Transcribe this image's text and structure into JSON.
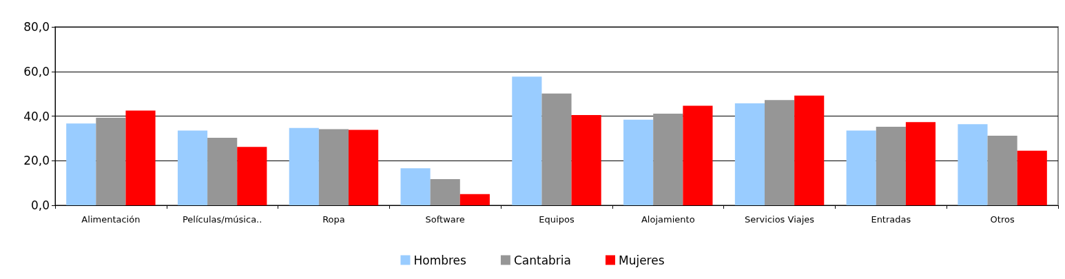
{
  "chart_data": {
    "type": "bar",
    "categories": [
      "Alimentación",
      "Películas/música..",
      "Ropa",
      "Software",
      "Equipos",
      "Alojamiento",
      "Servicios Viajes",
      "Entradas",
      "Otros"
    ],
    "series": [
      {
        "name": "Hombres",
        "color": "#99ccff",
        "values": [
          36.7,
          33.5,
          34.7,
          16.6,
          57.7,
          38.4,
          45.7,
          33.5,
          36.4
        ]
      },
      {
        "name": "Cantabria",
        "color": "#969696",
        "values": [
          39.3,
          30.3,
          34.1,
          11.7,
          50.1,
          41.1,
          47.2,
          35.2,
          31.2
        ]
      },
      {
        "name": "Mujeres",
        "color": "#ff0000",
        "values": [
          42.5,
          26.2,
          33.8,
          5.0,
          40.5,
          44.6,
          49.2,
          37.3,
          24.5
        ]
      }
    ],
    "ylim": [
      0,
      80
    ],
    "yticks": [
      {
        "value": 0,
        "label": "0,0"
      },
      {
        "value": 20,
        "label": "20,0"
      },
      {
        "value": 40,
        "label": "40,0"
      },
      {
        "value": 60,
        "label": "60,0"
      },
      {
        "value": 80,
        "label": "80,0"
      }
    ],
    "grid": "y",
    "legend": "bottom"
  }
}
